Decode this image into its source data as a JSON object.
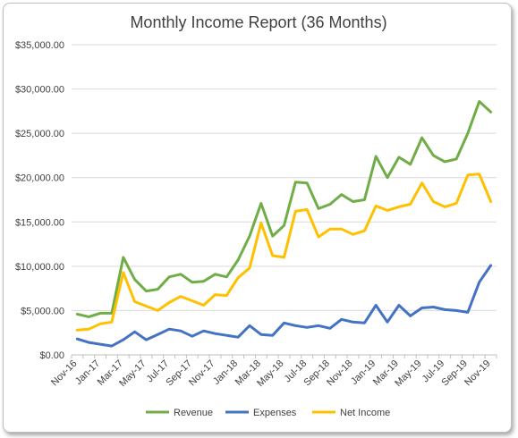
{
  "chart_data": {
    "type": "line",
    "title": "Monthly Income Report (36 Months)",
    "xlabel": "",
    "ylabel": "",
    "ylim": [
      0,
      35000
    ],
    "yticks": [
      0,
      5000,
      10000,
      15000,
      20000,
      25000,
      30000,
      35000
    ],
    "ytick_labels": [
      "$0.00",
      "$5,000.00",
      "$10,000.00",
      "$15,000.00",
      "$20,000.00",
      "$25,000.00",
      "$30,000.00",
      "$35,000.00"
    ],
    "categories": [
      "Nov-16",
      "Dec-16",
      "Jan-17",
      "Feb-17",
      "Mar-17",
      "Apr-17",
      "May-17",
      "Jun-17",
      "Jul-17",
      "Aug-17",
      "Sep-17",
      "Oct-17",
      "Nov-17",
      "Dec-17",
      "Jan-18",
      "Feb-18",
      "Mar-18",
      "Apr-18",
      "May-18",
      "Jun-18",
      "Jul-18",
      "Aug-18",
      "Sep-18",
      "Oct-18",
      "Nov-18",
      "Dec-18",
      "Jan-19",
      "Feb-19",
      "Mar-19",
      "Apr-19",
      "May-19",
      "Jun-19",
      "Jul-19",
      "Aug-19",
      "Sep-19",
      "Oct-19",
      "Nov-19"
    ],
    "visible_tick_labels": [
      "Nov-16",
      "Jan-17",
      "Mar-17",
      "May-17",
      "Jul-17",
      "Sep-17",
      "Nov-17",
      "Jan-18",
      "Mar-18",
      "May-18",
      "Jul-18",
      "Sep-18",
      "Nov-18",
      "Jan-19",
      "Mar-19",
      "May-19",
      "Jul-19",
      "Sep-19",
      "Nov-19"
    ],
    "grid": true,
    "legend_position": "bottom",
    "series": [
      {
        "name": "Revenue",
        "color": "#70ad47",
        "values": [
          4600,
          4300,
          4700,
          4700,
          11000,
          8500,
          7200,
          7400,
          8800,
          9100,
          8200,
          8300,
          9100,
          8800,
          10700,
          13400,
          17100,
          13400,
          14600,
          19500,
          19400,
          16500,
          17000,
          18100,
          17300,
          17500,
          22400,
          20000,
          22300,
          21500,
          24500,
          22500,
          21800,
          22100,
          25000,
          28600,
          27400
        ]
      },
      {
        "name": "Expenses",
        "color": "#4472c4",
        "values": [
          1800,
          1400,
          1200,
          1000,
          1700,
          2600,
          1700,
          2300,
          2900,
          2700,
          2100,
          2700,
          2400,
          2200,
          2000,
          3300,
          2300,
          2200,
          3600,
          3300,
          3100,
          3300,
          3000,
          4000,
          3700,
          3600,
          5600,
          3700,
          5600,
          4400,
          5300,
          5400,
          5100,
          5000,
          4800,
          8200,
          10100
        ]
      },
      {
        "name": "Net Income",
        "color": "#ffc000",
        "values": [
          2800,
          2900,
          3500,
          3700,
          9300,
          6000,
          5500,
          5000,
          5900,
          6600,
          6100,
          5600,
          6800,
          6700,
          8700,
          9800,
          14900,
          11200,
          11000,
          16200,
          16400,
          13300,
          14200,
          14200,
          13600,
          14000,
          16800,
          16300,
          16700,
          17000,
          19400,
          17300,
          16700,
          17100,
          20300,
          20400,
          17300
        ]
      }
    ]
  }
}
